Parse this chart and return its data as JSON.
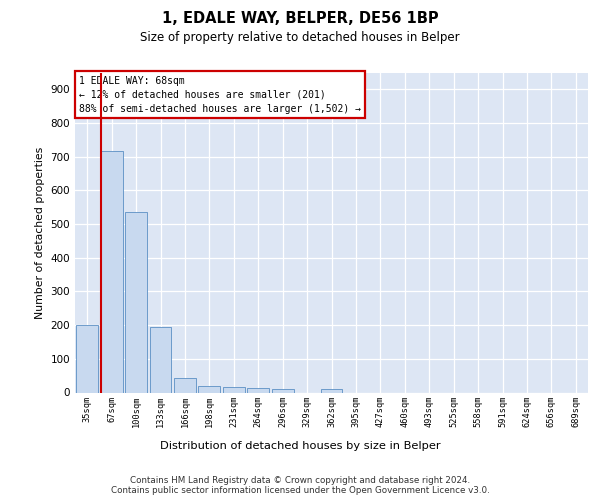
{
  "title_line1": "1, EDALE WAY, BELPER, DE56 1BP",
  "title_line2": "Size of property relative to detached houses in Belper",
  "xlabel": "Distribution of detached houses by size in Belper",
  "ylabel": "Number of detached properties",
  "categories": [
    "35sqm",
    "67sqm",
    "100sqm",
    "133sqm",
    "166sqm",
    "198sqm",
    "231sqm",
    "264sqm",
    "296sqm",
    "329sqm",
    "362sqm",
    "395sqm",
    "427sqm",
    "460sqm",
    "493sqm",
    "525sqm",
    "558sqm",
    "591sqm",
    "624sqm",
    "656sqm",
    "689sqm"
  ],
  "values": [
    201,
    717,
    536,
    194,
    42,
    20,
    15,
    13,
    10,
    0,
    9,
    0,
    0,
    0,
    0,
    0,
    0,
    0,
    0,
    0,
    0
  ],
  "bar_color": "#c8d9ef",
  "bar_edge_color": "#5b8fc4",
  "vline_color": "#cc0000",
  "ylim": [
    0,
    950
  ],
  "yticks": [
    0,
    100,
    200,
    300,
    400,
    500,
    600,
    700,
    800,
    900
  ],
  "annotation_line1": "1 EDALE WAY: 68sqm",
  "annotation_line2": "← 12% of detached houses are smaller (201)",
  "annotation_line3": "88% of semi-detached houses are larger (1,502) →",
  "footer": "Contains HM Land Registry data © Crown copyright and database right 2024.\nContains public sector information licensed under the Open Government Licence v3.0.",
  "plot_bg_color": "#dde6f4"
}
